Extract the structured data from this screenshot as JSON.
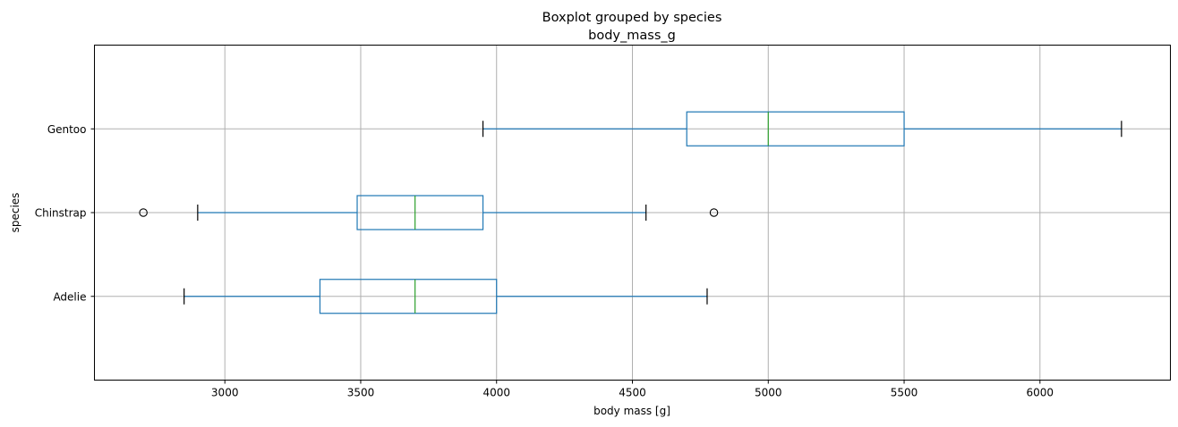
{
  "chart_data": {
    "type": "boxplot",
    "orientation": "horizontal",
    "suptitle": "Boxplot grouped by species",
    "title": "body_mass_g",
    "xlabel": "body mass [g]",
    "ylabel": "species",
    "xlim": [
      2520,
      6480
    ],
    "xticks": [
      3000,
      3500,
      4000,
      4500,
      5000,
      5500,
      6000
    ],
    "grid": true,
    "colors": {
      "box": "#1f77b4",
      "median": "#2ca02c",
      "grid": "#b0b0b0",
      "whisker_cap": "#000000"
    },
    "categories": [
      "Adelie",
      "Chinstrap",
      "Gentoo"
    ],
    "boxes": [
      {
        "category": "Adelie",
        "whisker_low": 2850,
        "q1": 3350,
        "median": 3700,
        "q3": 4000,
        "whisker_high": 4775,
        "outliers": []
      },
      {
        "category": "Chinstrap",
        "whisker_low": 2900,
        "q1": 3487,
        "median": 3700,
        "q3": 3950,
        "whisker_high": 4550,
        "outliers": [
          2700,
          4800
        ]
      },
      {
        "category": "Gentoo",
        "whisker_low": 3950,
        "q1": 4700,
        "median": 5000,
        "q3": 5500,
        "whisker_high": 6300,
        "outliers": []
      }
    ]
  }
}
